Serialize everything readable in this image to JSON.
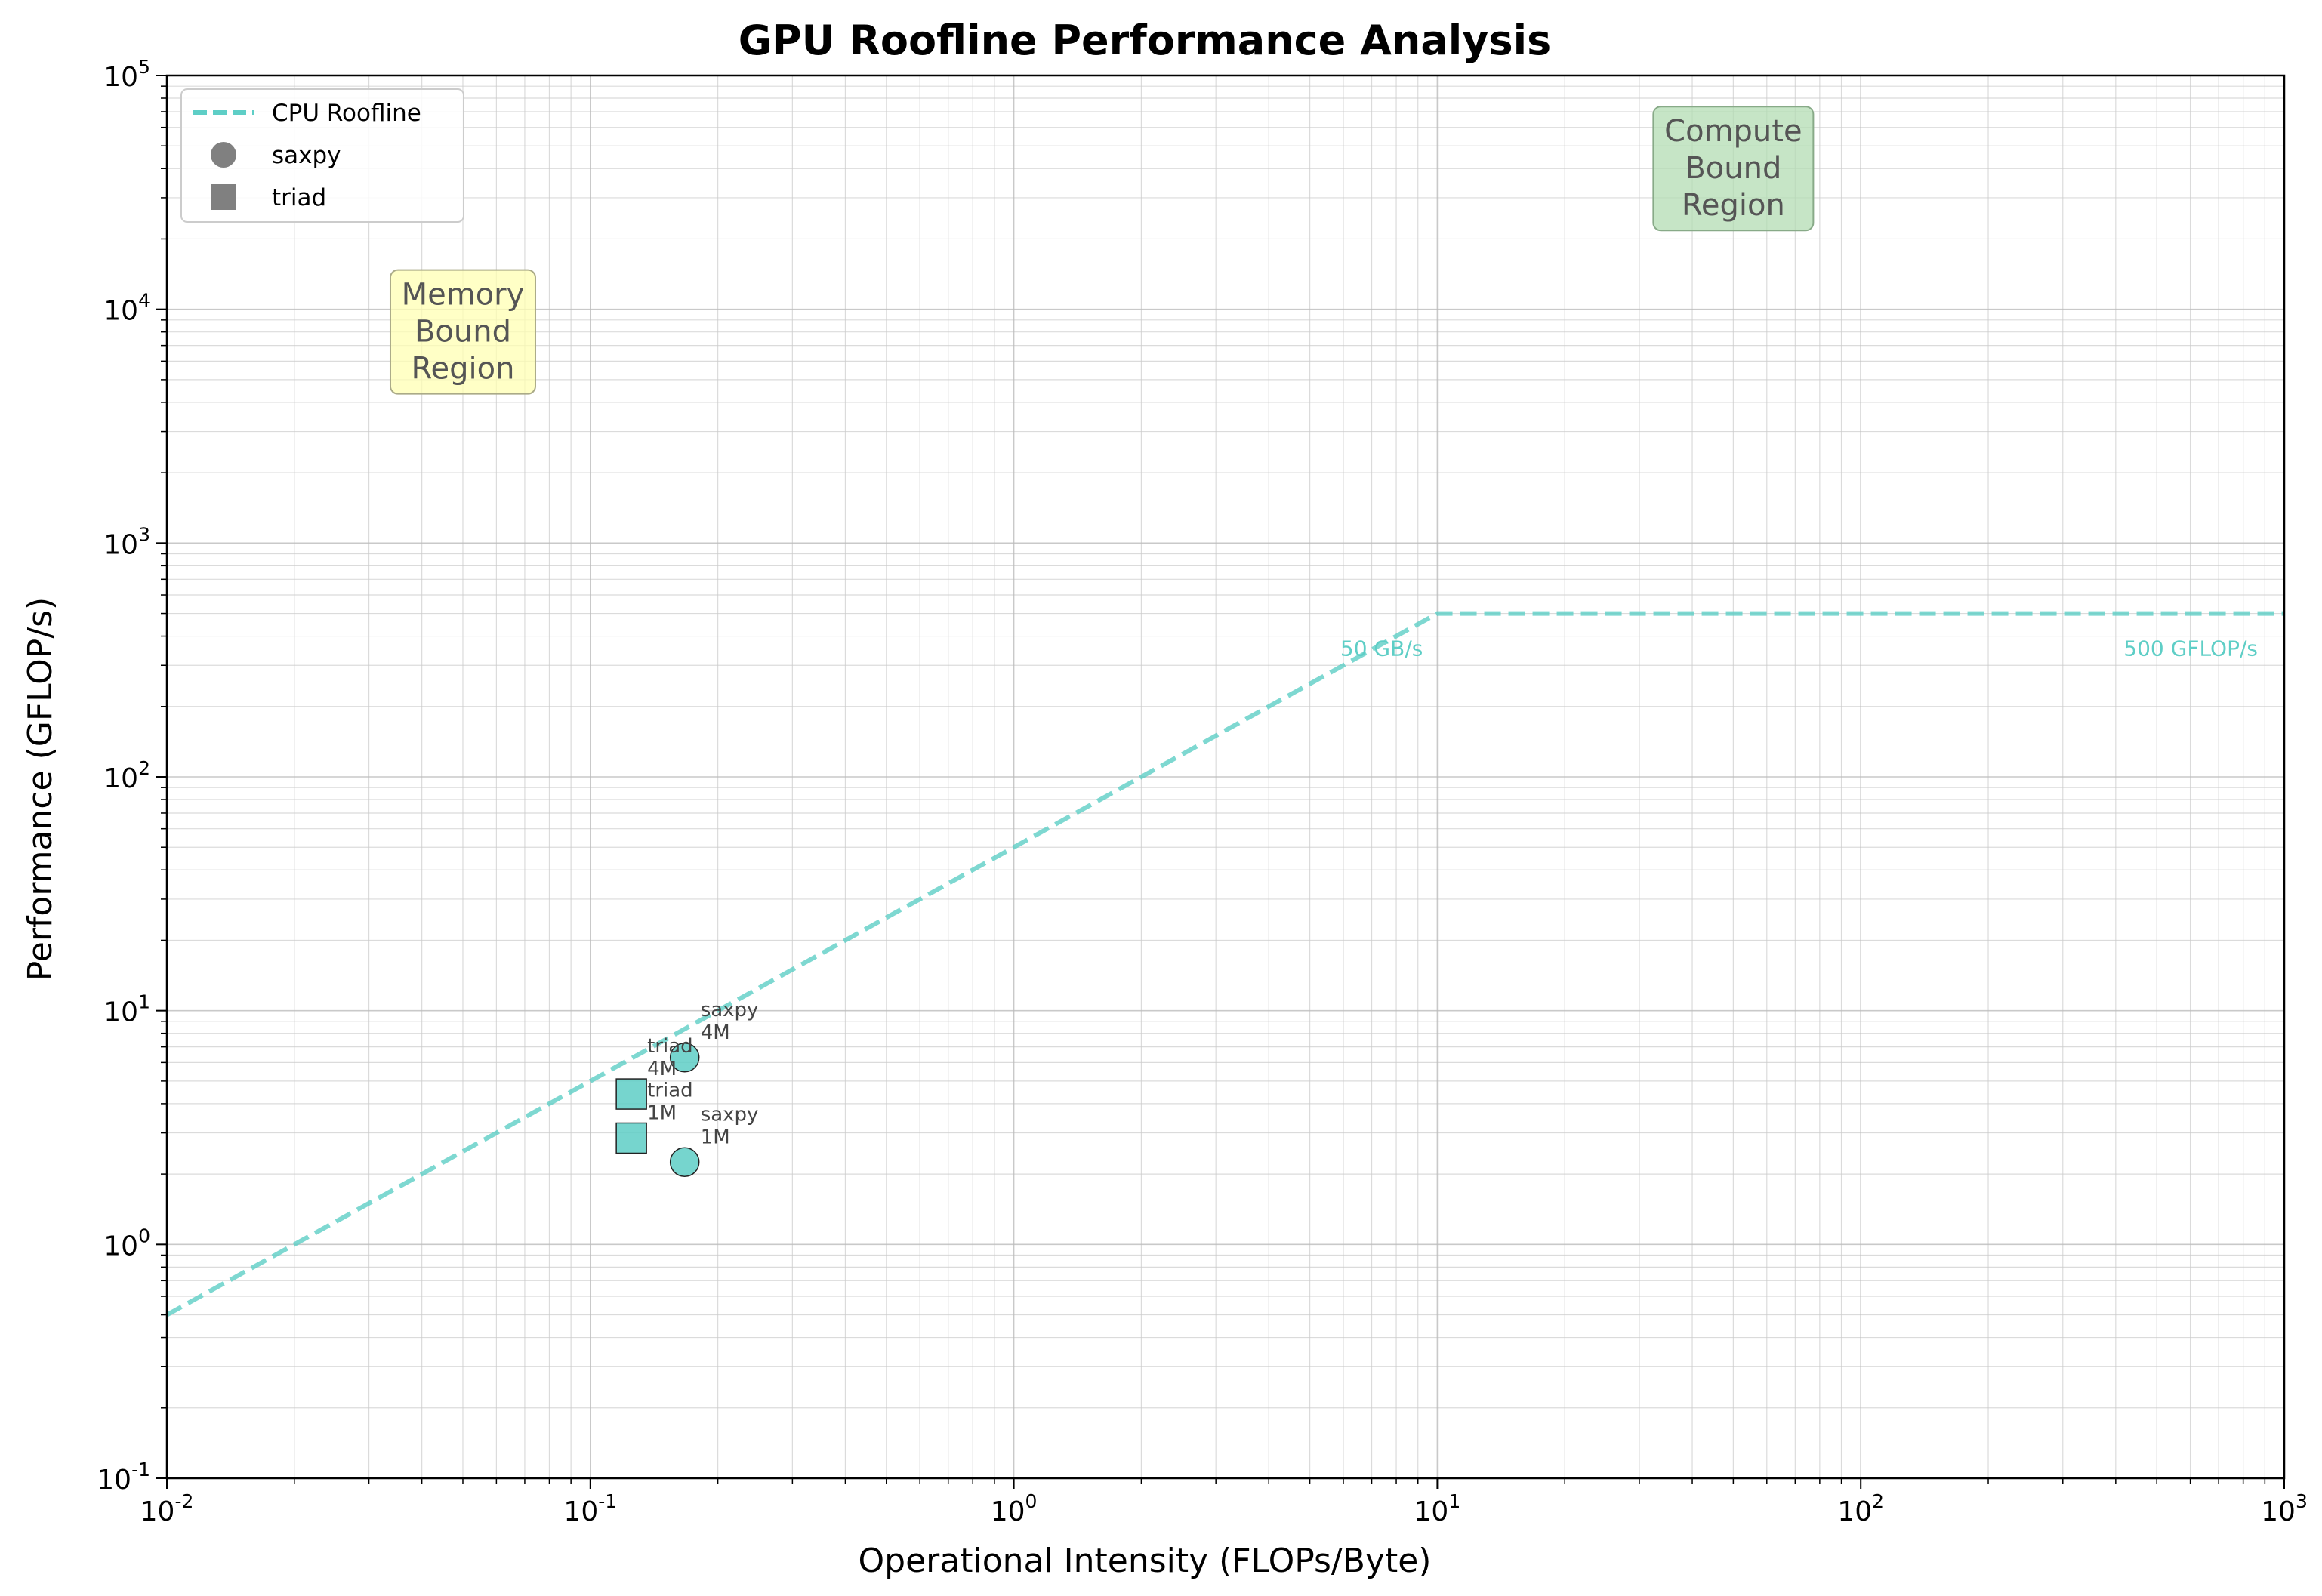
{
  "chart_data": {
    "type": "scatter",
    "title": "GPU Roofline Performance Analysis",
    "xlabel": "Operational Intensity (FLOPs/Byte)",
    "ylabel": "Performance (GFLOP/s)",
    "xscale": "log",
    "yscale": "log",
    "xlim": [
      0.01,
      1000
    ],
    "ylim": [
      0.1,
      100000
    ],
    "x_tick_exponents": [
      "-2",
      "-1",
      "0",
      "1",
      "2",
      "3"
    ],
    "y_tick_exponents": [
      "-1",
      "0",
      "1",
      "2",
      "3",
      "4",
      "5"
    ],
    "tick_base": "10",
    "grid": true,
    "legend_position": "top-left",
    "roofline": {
      "name": "CPU Roofline",
      "color": "#5ECEC6",
      "bandwidth_gbs": 50,
      "peak_gflops": 500,
      "ridge_point": 10,
      "bandwidth_label": "50 GB/s",
      "peak_label": "500 GFLOP/s"
    },
    "legend": [
      {
        "label": "CPU Roofline",
        "marker": "dashed-line"
      },
      {
        "label": "saxpy",
        "marker": "circle"
      },
      {
        "label": "triad",
        "marker": "square"
      }
    ],
    "points": [
      {
        "kernel": "saxpy",
        "size": "4M",
        "marker": "circle",
        "x": 0.167,
        "y": 6.3
      },
      {
        "kernel": "saxpy",
        "size": "1M",
        "marker": "circle",
        "x": 0.167,
        "y": 2.25
      },
      {
        "kernel": "triad",
        "size": "4M",
        "marker": "square",
        "x": 0.125,
        "y": 4.4
      },
      {
        "kernel": "triad",
        "size": "1M",
        "marker": "square",
        "x": 0.125,
        "y": 2.85
      }
    ],
    "regions": [
      {
        "lines": [
          "Memory",
          "Bound",
          "Region"
        ],
        "x": 0.05,
        "y": 8000,
        "bg": "#FFFFB3",
        "border": "#AAAA88"
      },
      {
        "lines": [
          "Compute",
          "Bound",
          "Region"
        ],
        "x": 50,
        "y": 40000,
        "bg": "#B3DCB3",
        "border": "#88AA88"
      }
    ]
  }
}
